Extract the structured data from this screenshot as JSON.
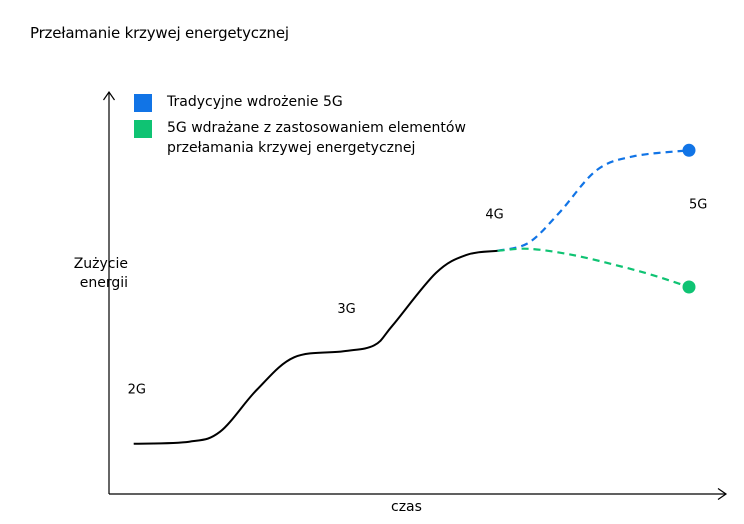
{
  "chart_data": {
    "type": "line",
    "title": "Przełamanie krzywej energetycznej",
    "xlabel": "czas",
    "ylabel": "Zużycie\nenergii",
    "grid": false,
    "legend_position": "top-left",
    "xlim": [
      0,
      100
    ],
    "ylim": [
      0,
      100
    ],
    "generation_labels": [
      {
        "label": "2G",
        "x": 4.5,
        "y": 25
      },
      {
        "label": "3G",
        "x": 38.5,
        "y": 45
      },
      {
        "label": "4G",
        "x": 62.5,
        "y": 68.5
      },
      {
        "label": "5G",
        "x": 95.5,
        "y": 71
      }
    ],
    "series": [
      {
        "name": "",
        "color": "#000000",
        "style": "solid",
        "x": [
          4,
          13,
          18,
          24,
          30,
          38,
          43,
          46,
          53,
          58,
          63
        ],
        "y": [
          12.5,
          13,
          15.5,
          26,
          34,
          35.5,
          37,
          42,
          55,
          59.5,
          60.5
        ]
      },
      {
        "name": "Tradycyjne wdrożenie 5G",
        "color": "#1174e6",
        "style": "dashed",
        "x": [
          63,
          68,
          73,
          79,
          85,
          94
        ],
        "y": [
          60.5,
          62.5,
          70,
          80.5,
          84,
          85.5
        ]
      },
      {
        "name": "5G wdrażane z zastosowaniem elementów\nprzełamania krzywej energetycznej",
        "color": "#0fc373",
        "style": "dashed",
        "x": [
          63,
          68,
          75,
          82,
          88,
          94
        ],
        "y": [
          60.5,
          61,
          59.5,
          57,
          54.5,
          51.5
        ]
      }
    ],
    "endpoints": [
      {
        "x": 94,
        "y": 85.5,
        "color": "#1174e6"
      },
      {
        "x": 94,
        "y": 51.5,
        "color": "#0fc373"
      }
    ],
    "colors": {
      "axis": "#000000",
      "text": "#000000",
      "blue": "#1174e6",
      "green": "#0fc373"
    }
  }
}
